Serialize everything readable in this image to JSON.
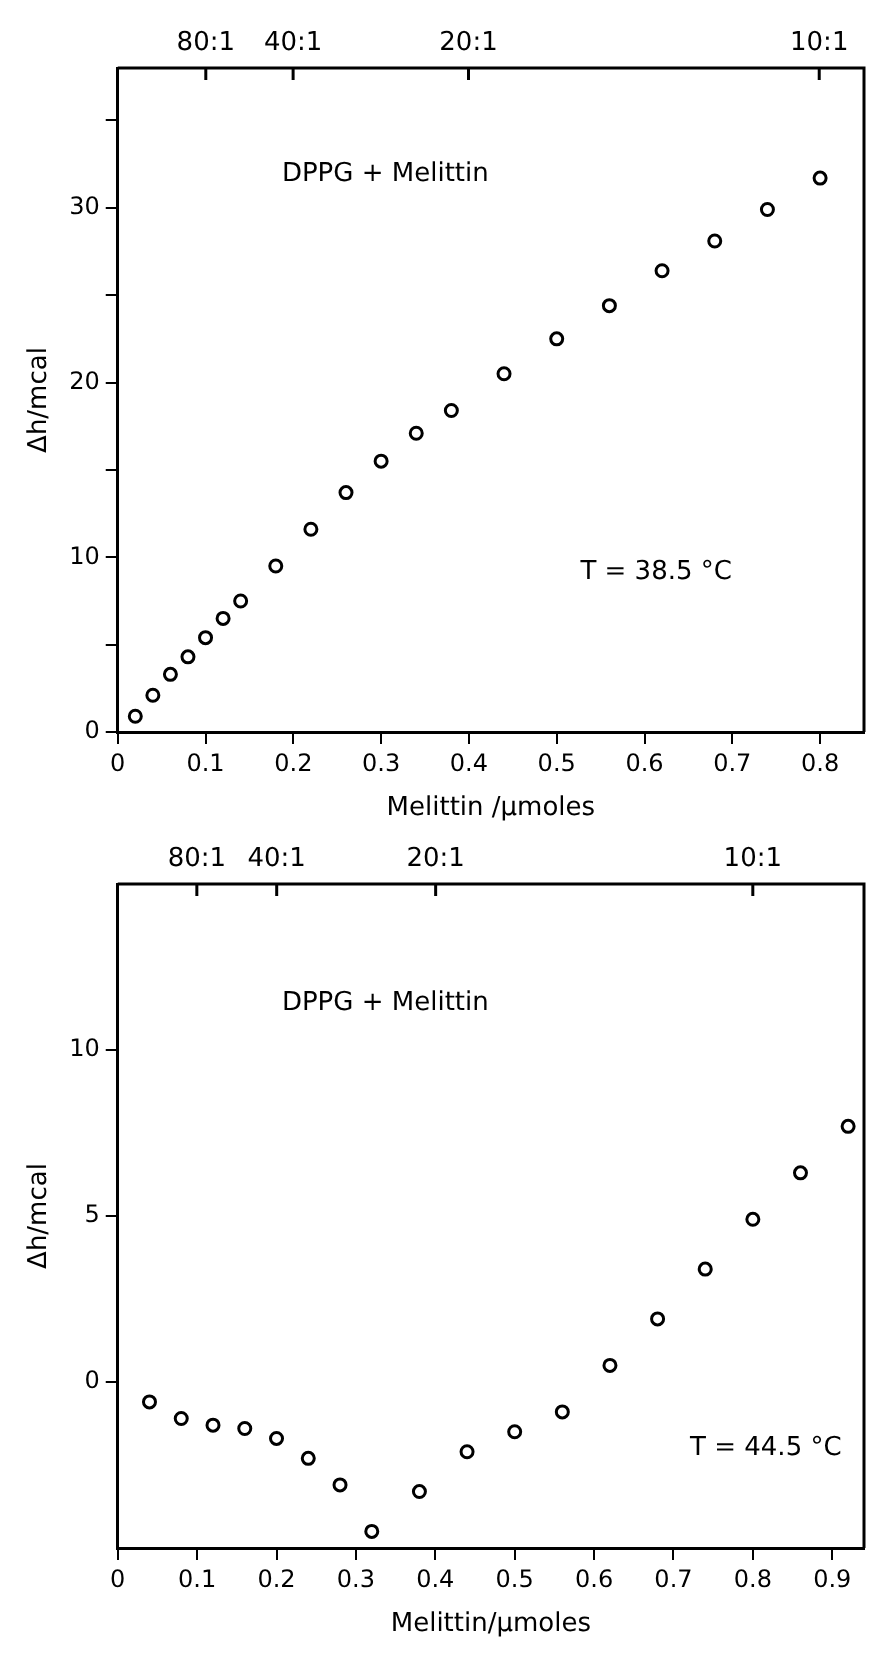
{
  "chart_data": [
    {
      "type": "scatter",
      "xlabel": "Melittin /μmoles",
      "ylabel": "Δh/mcal",
      "annotations": [
        "DPPG + Melittin",
        "T = 38.5 °C",
        "80:1",
        "40:1",
        "20:1",
        "10:1"
      ],
      "marker": "circle",
      "grid": false,
      "legend": false,
      "x": [
        0.02,
        0.04,
        0.06,
        0.08,
        0.1,
        0.12,
        0.14,
        0.18,
        0.22,
        0.26,
        0.3,
        0.34,
        0.38,
        0.44,
        0.5,
        0.56,
        0.62,
        0.68,
        0.74,
        0.8
      ],
      "series": [
        {
          "color": "#000000",
          "values": [
            0.9,
            2.1,
            3.3,
            4.3,
            5.4,
            6.5,
            7.5,
            9.5,
            11.6,
            13.7,
            15.5,
            17.1,
            18.4,
            20.5,
            22.5,
            24.4,
            26.4,
            28.1,
            29.9,
            31.7
          ]
        }
      ],
      "xlim": [
        0,
        0.85
      ],
      "xticks": [
        0,
        0.1,
        0.2,
        0.3,
        0.4,
        0.5,
        0.6,
        0.7,
        0.8
      ],
      "ylim": [
        0,
        38
      ],
      "yticks": [
        0,
        {
          "value": 5,
          "label": null
        },
        10,
        {
          "value": 15,
          "label": null
        },
        20,
        {
          "value": 25,
          "label": null
        },
        30,
        {
          "value": 35,
          "label": null
        }
      ]
    },
    {
      "type": "scatter",
      "xlabel": "Melittin/μmoles",
      "ylabel": "Δh/mcal",
      "annotations": [
        "DPPG + Melittin",
        "T = 44.5 °C",
        "80:1",
        "40:1",
        "20:1",
        "10:1"
      ],
      "marker": "circle",
      "grid": false,
      "legend": false,
      "x": [
        0.04,
        0.08,
        0.12,
        0.16,
        0.2,
        0.24,
        0.28,
        0.32,
        0.38,
        0.44,
        0.5,
        0.56,
        0.62,
        0.68,
        0.74,
        0.8,
        0.86,
        0.92
      ],
      "series": [
        {
          "color": "#000000",
          "values": [
            -0.6,
            -1.1,
            -1.3,
            -1.4,
            -1.7,
            -2.3,
            -3.1,
            -4.5,
            -3.3,
            -2.1,
            -1.5,
            -0.9,
            0.5,
            1.9,
            3.4,
            4.9,
            6.3,
            7.7
          ]
        }
      ],
      "xlim": [
        0,
        0.94
      ],
      "xticks": [
        0,
        0.1,
        0.2,
        0.3,
        0.4,
        0.5,
        0.6,
        0.7,
        0.8,
        0.9
      ],
      "ylim": [
        -5,
        15
      ],
      "yticks": [
        0,
        5,
        10
      ]
    }
  ]
}
